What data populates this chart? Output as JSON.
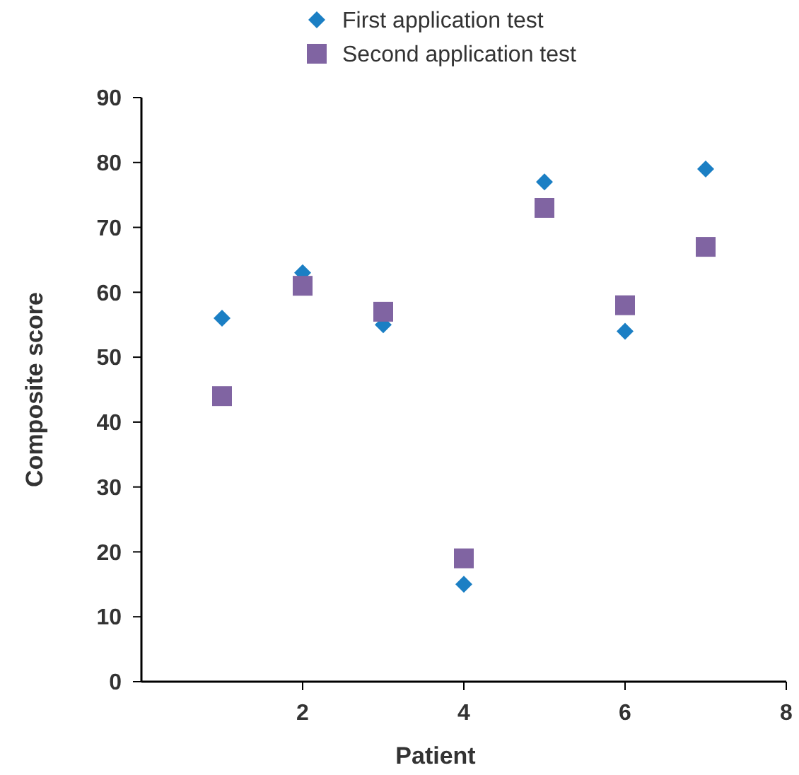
{
  "chart_data": {
    "type": "scatter",
    "xlabel": "Patient",
    "ylabel": "Composite score",
    "x": [
      1,
      2,
      3,
      4,
      5,
      6,
      7
    ],
    "xlim": [
      0,
      8
    ],
    "xticks": [
      2,
      4,
      6,
      8
    ],
    "ylim": [
      0,
      90
    ],
    "yticks": [
      0,
      10,
      20,
      30,
      40,
      50,
      60,
      70,
      80,
      90
    ],
    "grid": false,
    "legend": "top",
    "series": [
      {
        "name": "First application test",
        "color": "#1b7fc4",
        "marker": "diamond",
        "values": [
          56,
          63,
          55,
          15,
          77,
          54,
          79
        ]
      },
      {
        "name": "Second application test",
        "color": "#8064a2",
        "marker": "square",
        "values": [
          44,
          61,
          57,
          19,
          73,
          58,
          67
        ]
      }
    ]
  }
}
